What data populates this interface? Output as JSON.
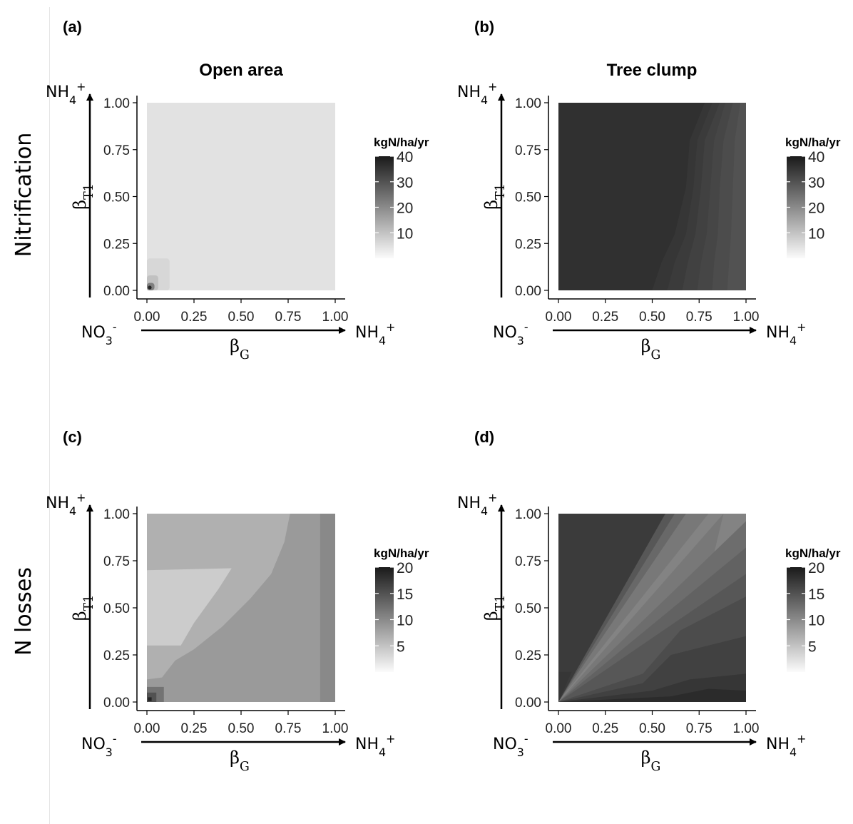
{
  "row_labels": [
    "Nitrification",
    "N losses"
  ],
  "column_titles": [
    "Open area",
    "Tree clump"
  ],
  "colors": {
    "text": "#000000",
    "axis": "#000000",
    "divider": "#e4e4e4",
    "tick_label": "#222222"
  },
  "chart_data": [
    {
      "id": "a",
      "type": "heatmap",
      "panel_label": "(a)",
      "title": "Open area",
      "row": "Nitrification",
      "xlabel": "βG",
      "ylabel": "βT1",
      "x_start_label": "NO3-",
      "x_end_label": "NH4+",
      "y_end_label": "NH4+",
      "xlim": [
        0,
        1
      ],
      "ylim": [
        0,
        1
      ],
      "x_ticks": [
        "0.00",
        "0.25",
        "0.50",
        "0.75",
        "1.00"
      ],
      "y_ticks": [
        "0.00",
        "0.25",
        "0.50",
        "0.75",
        "1.00"
      ],
      "legend": {
        "title": "kgN/ha/yr",
        "range": [
          0,
          40
        ],
        "ticks": [
          10,
          20,
          30,
          40
        ]
      },
      "background_value": 4,
      "regions": [
        {
          "value": 6,
          "x": [
            0.0,
            0.12
          ],
          "y": [
            0.0,
            0.17
          ]
        },
        {
          "value": 10,
          "x": [
            0.0,
            0.06
          ],
          "y": [
            0.0,
            0.08
          ]
        },
        {
          "value": 22,
          "x": [
            0.0,
            0.04
          ],
          "y": [
            0.0,
            0.04
          ]
        },
        {
          "value": 38,
          "x": [
            0.005,
            0.025
          ],
          "y": [
            0.005,
            0.025
          ]
        }
      ]
    },
    {
      "id": "b",
      "type": "heatmap",
      "panel_label": "(b)",
      "title": "Tree clump",
      "row": "Nitrification",
      "xlabel": "βG",
      "ylabel": "βT1",
      "x_start_label": "NO3-",
      "x_end_label": "NH4+",
      "y_end_label": "NH4+",
      "xlim": [
        0,
        1
      ],
      "ylim": [
        0,
        1
      ],
      "x_ticks": [
        "0.00",
        "0.25",
        "0.50",
        "0.75",
        "1.00"
      ],
      "y_ticks": [
        "0.00",
        "0.25",
        "0.50",
        "0.75",
        "1.00"
      ],
      "legend": {
        "title": "kgN/ha/yr",
        "range": [
          0,
          40
        ],
        "ticks": [
          10,
          20,
          30,
          40
        ]
      },
      "background_value": 36,
      "bands": [
        {
          "value": 35,
          "boundary": [
            [
              0.78,
              1.0
            ],
            [
              0.7,
              0.8
            ],
            [
              0.68,
              0.55
            ],
            [
              0.62,
              0.3
            ],
            [
              0.55,
              0.15
            ],
            [
              0.5,
              0.0
            ]
          ]
        },
        {
          "value": 34,
          "boundary": [
            [
              0.82,
              1.0
            ],
            [
              0.74,
              0.8
            ],
            [
              0.72,
              0.55
            ],
            [
              0.68,
              0.3
            ],
            [
              0.62,
              0.15
            ],
            [
              0.58,
              0.0
            ]
          ]
        },
        {
          "value": 33,
          "boundary": [
            [
              0.86,
              1.0
            ],
            [
              0.78,
              0.8
            ],
            [
              0.76,
              0.55
            ],
            [
              0.73,
              0.3
            ],
            [
              0.69,
              0.15
            ],
            [
              0.66,
              0.0
            ]
          ]
        },
        {
          "value": 32,
          "boundary": [
            [
              0.89,
              1.0
            ],
            [
              0.83,
              0.8
            ],
            [
              0.81,
              0.55
            ],
            [
              0.79,
              0.3
            ],
            [
              0.76,
              0.15
            ],
            [
              0.74,
              0.0
            ]
          ]
        },
        {
          "value": 31,
          "boundary": [
            [
              0.93,
              1.0
            ],
            [
              0.88,
              0.8
            ],
            [
              0.86,
              0.55
            ],
            [
              0.85,
              0.3
            ],
            [
              0.83,
              0.15
            ],
            [
              0.82,
              0.0
            ]
          ]
        },
        {
          "value": 30,
          "boundary": [
            [
              0.97,
              1.0
            ],
            [
              0.94,
              0.8
            ],
            [
              0.93,
              0.55
            ],
            [
              0.92,
              0.3
            ],
            [
              0.91,
              0.15
            ],
            [
              0.9,
              0.0
            ]
          ]
        }
      ]
    },
    {
      "id": "c",
      "type": "heatmap",
      "panel_label": "(c)",
      "title": "",
      "row": "N losses",
      "xlabel": "βG",
      "ylabel": "βT1",
      "x_start_label": "NO3-",
      "x_end_label": "NH4+",
      "y_end_label": "NH4+",
      "xlim": [
        0,
        1
      ],
      "ylim": [
        0,
        1
      ],
      "x_ticks": [
        "0.00",
        "0.25",
        "0.50",
        "0.75",
        "1.00"
      ],
      "y_ticks": [
        "0.00",
        "0.25",
        "0.50",
        "0.75",
        "1.00"
      ],
      "legend": {
        "title": "kgN/ha/yr",
        "range": [
          0,
          20
        ],
        "ticks": [
          5,
          10,
          15,
          20
        ]
      },
      "background_value": 8.5,
      "polygons": [
        {
          "value": 6.5,
          "points": [
            [
              0.0,
              1.0
            ],
            [
              0.76,
              1.0
            ],
            [
              0.73,
              0.85
            ],
            [
              0.66,
              0.68
            ],
            [
              0.55,
              0.55
            ],
            [
              0.4,
              0.4
            ],
            [
              0.25,
              0.28
            ],
            [
              0.15,
              0.22
            ],
            [
              0.08,
              0.13
            ],
            [
              0.0,
              0.12
            ]
          ]
        },
        {
          "value": 4,
          "points": [
            [
              0.0,
              0.7
            ],
            [
              0.45,
              0.71
            ],
            [
              0.38,
              0.6
            ],
            [
              0.25,
              0.42
            ],
            [
              0.18,
              0.3
            ],
            [
              0.0,
              0.3
            ]
          ]
        },
        {
          "value": 10,
          "points": [
            [
              0.92,
              1.0
            ],
            [
              1.0,
              1.0
            ],
            [
              1.0,
              0.0
            ],
            [
              0.92,
              0.0
            ]
          ]
        },
        {
          "value": 12,
          "points": [
            [
              0.0,
              0.0
            ],
            [
              0.09,
              0.0
            ],
            [
              0.09,
              0.08
            ],
            [
              0.0,
              0.08
            ]
          ]
        },
        {
          "value": 15,
          "points": [
            [
              0.0,
              0.0
            ],
            [
              0.05,
              0.0
            ],
            [
              0.05,
              0.05
            ],
            [
              0.0,
              0.05
            ]
          ]
        },
        {
          "value": 19,
          "points": [
            [
              0.005,
              0.005
            ],
            [
              0.025,
              0.005
            ],
            [
              0.025,
              0.025
            ],
            [
              0.005,
              0.025
            ]
          ]
        }
      ]
    },
    {
      "id": "d",
      "type": "heatmap",
      "panel_label": "(d)",
      "title": "",
      "row": "N losses",
      "xlabel": "βG",
      "ylabel": "βT1",
      "x_start_label": "NO3-",
      "x_end_label": "NH4+",
      "y_end_label": "NH4+",
      "xlim": [
        0,
        1
      ],
      "ylim": [
        0,
        1
      ],
      "x_ticks": [
        "0.00",
        "0.25",
        "0.50",
        "0.75",
        "1.00"
      ],
      "y_ticks": [
        "0.00",
        "0.25",
        "0.50",
        "0.75",
        "1.00"
      ],
      "legend": {
        "title": "kgN/ha/yr",
        "range": [
          0,
          20
        ],
        "ticks": [
          5,
          10,
          15,
          20
        ]
      },
      "background_value": 17,
      "polygons": [
        {
          "value": 14.5,
          "points": [
            [
              0.0,
              0.0
            ],
            [
              0.57,
              1.0
            ],
            [
              1.0,
              1.0
            ],
            [
              1.0,
              0.0
            ]
          ]
        },
        {
          "value": 13,
          "points": [
            [
              0.0,
              0.0
            ],
            [
              0.62,
              1.0
            ],
            [
              1.0,
              1.0
            ],
            [
              1.0,
              0.0
            ]
          ]
        },
        {
          "value": 11.5,
          "points": [
            [
              0.0,
              0.0
            ],
            [
              0.68,
              1.0
            ],
            [
              1.0,
              1.0
            ],
            [
              1.0,
              0.0
            ]
          ]
        },
        {
          "value": 10.5,
          "points": [
            [
              0.0,
              0.0
            ],
            [
              0.8,
              1.0
            ],
            [
              1.0,
              1.0
            ],
            [
              1.0,
              0.0
            ]
          ]
        },
        {
          "value": 11.5,
          "points": [
            [
              0.0,
              0.0
            ],
            [
              0.88,
              1.0
            ],
            [
              0.82,
              0.75
            ],
            [
              0.72,
              0.6
            ],
            [
              0.65,
              0.43
            ],
            [
              0.55,
              0.32
            ],
            [
              0.35,
              0.18
            ],
            [
              0.15,
              0.06
            ]
          ]
        },
        {
          "value": 12.5,
          "points": [
            [
              0.0,
              0.0
            ],
            [
              1.0,
              0.96
            ],
            [
              1.0,
              0.0
            ]
          ]
        },
        {
          "value": 13.5,
          "points": [
            [
              0.0,
              0.0
            ],
            [
              1.0,
              0.82
            ],
            [
              1.0,
              0.0
            ]
          ]
        },
        {
          "value": 14.5,
          "points": [
            [
              0.0,
              0.0
            ],
            [
              1.0,
              0.68
            ],
            [
              1.0,
              0.0
            ]
          ]
        },
        {
          "value": 15.5,
          "points": [
            [
              0.0,
              0.0
            ],
            [
              0.45,
              0.15
            ],
            [
              0.65,
              0.38
            ],
            [
              1.0,
              0.56
            ],
            [
              1.0,
              0.0
            ]
          ]
        },
        {
          "value": 16.5,
          "points": [
            [
              0.0,
              0.0
            ],
            [
              0.45,
              0.1
            ],
            [
              0.6,
              0.25
            ],
            [
              0.8,
              0.3
            ],
            [
              1.0,
              0.35
            ],
            [
              1.0,
              0.0
            ]
          ]
        },
        {
          "value": 17.5,
          "points": [
            [
              0.0,
              0.0
            ],
            [
              0.5,
              0.06
            ],
            [
              0.7,
              0.12
            ],
            [
              1.0,
              0.15
            ],
            [
              1.0,
              0.0
            ]
          ]
        },
        {
          "value": 18.5,
          "points": [
            [
              0.0,
              0.0
            ],
            [
              0.6,
              0.03
            ],
            [
              0.8,
              0.07
            ],
            [
              1.0,
              0.06
            ],
            [
              1.0,
              0.0
            ]
          ]
        },
        {
          "value": 17.5,
          "points": [
            [
              0.0,
              0.16
            ],
            [
              0.07,
              0.16
            ],
            [
              0.0,
              0.0
            ]
          ]
        }
      ]
    }
  ]
}
